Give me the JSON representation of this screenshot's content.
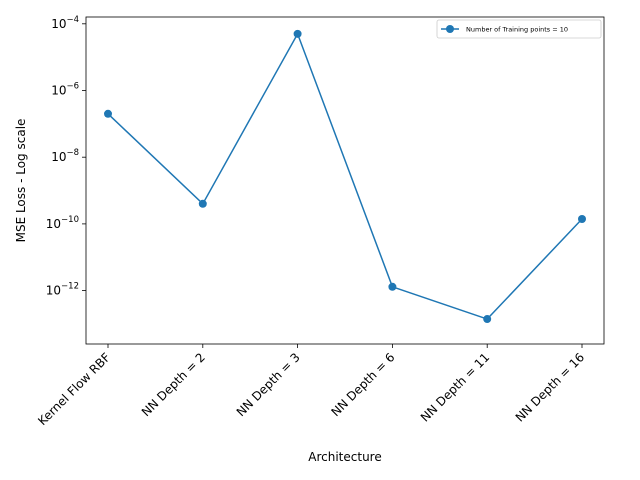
{
  "chart_data": {
    "type": "line",
    "title": "",
    "xlabel": "Architecture",
    "ylabel": "MSE Loss - Log scale",
    "yscale": "log",
    "ylim": [
      2.5e-14,
      0.00016
    ],
    "yticks": [
      {
        "value": 1e-12,
        "base": "10",
        "exp": "−12"
      },
      {
        "value": 1e-10,
        "base": "10",
        "exp": "−10"
      },
      {
        "value": 1e-08,
        "base": "10",
        "exp": "−8"
      },
      {
        "value": 1e-06,
        "base": "10",
        "exp": "−6"
      },
      {
        "value": 0.0001,
        "base": "10",
        "exp": "−4"
      }
    ],
    "categories": [
      "Kernel Flow RBF",
      "NN Depth = 2",
      "NN Depth = 3",
      "NN Depth = 6",
      "NN Depth = 11",
      "NN Depth = 16"
    ],
    "series": [
      {
        "name": "Number of Training points = 10",
        "values": [
          2e-07,
          4e-10,
          5e-05,
          1.3e-12,
          1.4e-13,
          1.4e-10
        ],
        "color": "#1f77b4",
        "marker": "circle"
      }
    ],
    "grid": false,
    "legend_position": "top-right"
  }
}
